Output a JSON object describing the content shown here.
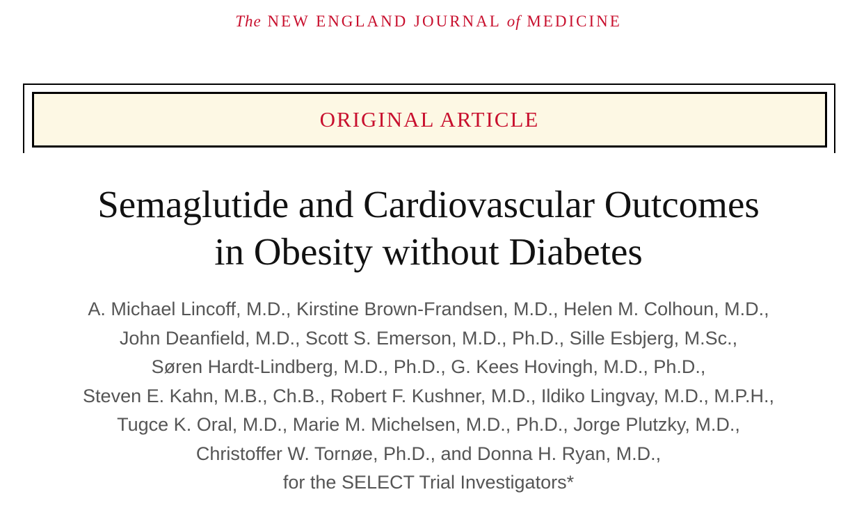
{
  "header": {
    "prefix": "The",
    "name_part1": "NEW ENGLAND JOURNAL",
    "connector": "of",
    "name_part2": "MEDICINE"
  },
  "banner": "ORIGINAL ARTICLE",
  "title": [
    "Semaglutide and Cardiovascular Outcomes",
    "in Obesity without Diabetes"
  ],
  "authors": [
    "A. Michael Lincoff, M.D., Kirstine Brown-Frandsen, M.D., Helen M. Colhoun, M.D.,",
    "John Deanfield, M.D., Scott S. Emerson, M.D., Ph.D., Sille Esbjerg, M.Sc.,",
    "Søren Hardt-Lindberg, M.D., Ph.D., G. Kees Hovingh, M.D., Ph.D.,",
    "Steven E. Kahn, M.B., Ch.B., Robert F. Kushner, M.D., Ildiko Lingvay, M.D., M.P.H.,",
    "Tugce K. Oral, M.D., Marie M. Michelsen, M.D., Ph.D., Jorge Plutzky, M.D.,",
    "Christoffer W. Tornøe, Ph.D., and Donna H. Ryan, M.D.,",
    "for the SELECT Trial Investigators*"
  ]
}
